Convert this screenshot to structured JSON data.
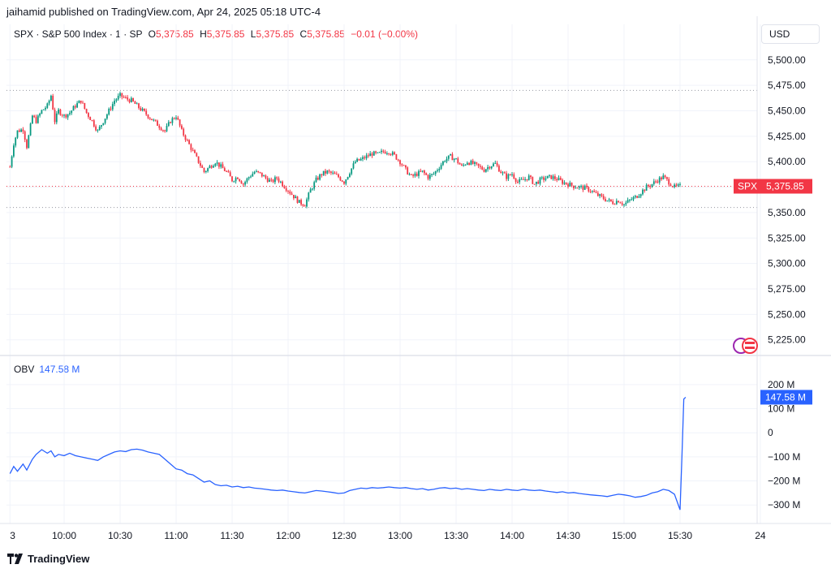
{
  "header": {
    "published": "jaihamid published on TradingView.com, Apr 24, 2025 05:18 UTC-4"
  },
  "legend": {
    "symbol_info": "SPX · S&P 500 Index · 1 · SP",
    "o_label": "O",
    "o_value": "5,375.85",
    "h_label": "H",
    "h_value": "5,375.85",
    "l_label": "L",
    "l_value": "5,375.85",
    "c_label": "C",
    "c_value": "5,375.85",
    "change": "−0.01 (−0.00%)"
  },
  "currency": "USD",
  "obv_legend": {
    "name": "OBV",
    "value": "147.58 M"
  },
  "brand": {
    "name": "TradingView"
  },
  "colors": {
    "up": "#089981",
    "down": "#f23645",
    "obv": "#2962ff",
    "grid": "#f0f3fa"
  },
  "chart_data": [
    {
      "type": "candlestick",
      "title": "SPX · S&P 500 Index · 1 · SP",
      "ylim": [
        5212,
        5515
      ],
      "yticks": [
        "5,500.00",
        "5,475.00",
        "5,450.00",
        "5,425.00",
        "5,400.00",
        "5,375.00",
        "5,350.00",
        "5,325.00",
        "5,300.00",
        "5,275.00",
        "5,250.00",
        "5,225.00"
      ],
      "ytick_values": [
        5500,
        5475,
        5450,
        5425,
        5400,
        5375,
        5350,
        5325,
        5300,
        5275,
        5250,
        5225
      ],
      "xticks": [
        "3",
        "10:00",
        "10:30",
        "11:00",
        "11:30",
        "12:00",
        "12:30",
        "13:00",
        "13:30",
        "14:00",
        "14:30",
        "15:00",
        "15:30",
        "24"
      ],
      "xtick_minutes": [
        -29,
        0,
        30,
        60,
        90,
        120,
        150,
        180,
        210,
        240,
        270,
        300,
        330,
        373
      ],
      "close_path": [
        [
          -29,
          5395
        ],
        [
          -27,
          5418
        ],
        [
          -25,
          5430
        ],
        [
          -22,
          5432
        ],
        [
          -20,
          5415
        ],
        [
          -17,
          5445
        ],
        [
          -15,
          5440
        ],
        [
          -12,
          5450
        ],
        [
          -9,
          5455
        ],
        [
          -7,
          5465
        ],
        [
          -5,
          5440
        ],
        [
          -3,
          5450
        ],
        [
          0,
          5445
        ],
        [
          3,
          5448
        ],
        [
          6,
          5455
        ],
        [
          9,
          5460
        ],
        [
          12,
          5448
        ],
        [
          15,
          5440
        ],
        [
          18,
          5430
        ],
        [
          21,
          5440
        ],
        [
          24,
          5450
        ],
        [
          27,
          5460
        ],
        [
          30,
          5465
        ],
        [
          33,
          5462
        ],
        [
          36,
          5460
        ],
        [
          39,
          5455
        ],
        [
          42,
          5450
        ],
        [
          45,
          5445
        ],
        [
          48,
          5440
        ],
        [
          51,
          5435
        ],
        [
          54,
          5430
        ],
        [
          57,
          5440
        ],
        [
          60,
          5445
        ],
        [
          63,
          5430
        ],
        [
          66,
          5420
        ],
        [
          69,
          5410
        ],
        [
          72,
          5400
        ],
        [
          75,
          5390
        ],
        [
          78,
          5395
        ],
        [
          81,
          5400
        ],
        [
          84,
          5395
        ],
        [
          87,
          5390
        ],
        [
          90,
          5382
        ],
        [
          93,
          5385
        ],
        [
          96,
          5378
        ],
        [
          99,
          5385
        ],
        [
          102,
          5390
        ],
        [
          105,
          5388
        ],
        [
          108,
          5384
        ],
        [
          111,
          5380
        ],
        [
          114,
          5384
        ],
        [
          117,
          5378
        ],
        [
          120,
          5372
        ],
        [
          123,
          5366
        ],
        [
          126,
          5360
        ],
        [
          129,
          5358
        ],
        [
          132,
          5372
        ],
        [
          135,
          5382
        ],
        [
          138,
          5388
        ],
        [
          141,
          5390
        ],
        [
          144,
          5388
        ],
        [
          147,
          5385
        ],
        [
          150,
          5380
        ],
        [
          153,
          5390
        ],
        [
          156,
          5400
        ],
        [
          159,
          5402
        ],
        [
          162,
          5405
        ],
        [
          165,
          5408
        ],
        [
          168,
          5407
        ],
        [
          171,
          5410
        ],
        [
          174,
          5410
        ],
        [
          177,
          5406
        ],
        [
          180,
          5400
        ],
        [
          183,
          5392
        ],
        [
          186,
          5385
        ],
        [
          189,
          5388
        ],
        [
          192,
          5390
        ],
        [
          195,
          5385
        ],
        [
          198,
          5388
        ],
        [
          201,
          5395
        ],
        [
          204,
          5402
        ],
        [
          207,
          5405
        ],
        [
          210,
          5402
        ],
        [
          213,
          5395
        ],
        [
          216,
          5400
        ],
        [
          219,
          5398
        ],
        [
          222,
          5395
        ],
        [
          225,
          5392
        ],
        [
          228,
          5396
        ],
        [
          231,
          5398
        ],
        [
          234,
          5390
        ],
        [
          237,
          5385
        ],
        [
          240,
          5388
        ],
        [
          243,
          5380
        ],
        [
          246,
          5382
        ],
        [
          249,
          5385
        ],
        [
          252,
          5378
        ],
        [
          255,
          5382
        ],
        [
          258,
          5384
        ],
        [
          261,
          5385
        ],
        [
          264,
          5383
        ],
        [
          267,
          5380
        ],
        [
          270,
          5378
        ],
        [
          273,
          5376
        ],
        [
          276,
          5375
        ],
        [
          279,
          5374
        ],
        [
          282,
          5372
        ],
        [
          285,
          5368
        ],
        [
          288,
          5365
        ],
        [
          291,
          5362
        ],
        [
          294,
          5360
        ],
        [
          297,
          5362
        ],
        [
          300,
          5358
        ],
        [
          303,
          5362
        ],
        [
          306,
          5365
        ],
        [
          309,
          5370
        ],
        [
          312,
          5375
        ],
        [
          315,
          5378
        ],
        [
          318,
          5382
        ],
        [
          321,
          5385
        ],
        [
          324,
          5380
        ],
        [
          327,
          5375
        ],
        [
          330,
          5375.85
        ]
      ],
      "last_price_label": "5,375.85",
      "last_price_tag": "SPX",
      "last_price": 5375.85,
      "dotted_levels": [
        5470,
        5375.85,
        5355
      ]
    },
    {
      "type": "line",
      "title": "OBV",
      "ylim": [
        -360,
        230
      ],
      "yticks": [
        "200 M",
        "100 M",
        "0",
        "−100 M",
        "−200 M",
        "−300 M"
      ],
      "ytick_values": [
        200,
        100,
        0,
        -100,
        -200,
        -300
      ],
      "last_value_label": "147.58 M",
      "x": [
        -29,
        -27,
        -25,
        -22,
        -20,
        -17,
        -15,
        -12,
        -9,
        -7,
        -5,
        -3,
        0,
        3,
        6,
        9,
        12,
        15,
        18,
        21,
        24,
        27,
        30,
        33,
        36,
        39,
        42,
        45,
        48,
        51,
        54,
        57,
        60,
        63,
        66,
        69,
        72,
        75,
        78,
        81,
        84,
        87,
        90,
        93,
        96,
        99,
        102,
        105,
        108,
        111,
        114,
        117,
        120,
        123,
        126,
        129,
        132,
        135,
        138,
        141,
        144,
        147,
        150,
        153,
        156,
        159,
        162,
        165,
        168,
        171,
        174,
        177,
        180,
        183,
        186,
        189,
        192,
        195,
        198,
        201,
        204,
        207,
        210,
        213,
        216,
        219,
        222,
        225,
        228,
        231,
        234,
        237,
        240,
        243,
        246,
        249,
        252,
        255,
        258,
        261,
        264,
        267,
        270,
        273,
        276,
        279,
        282,
        285,
        288,
        291,
        294,
        297,
        300,
        303,
        306,
        309,
        312,
        315,
        318,
        321,
        324,
        327,
        330,
        331,
        332,
        333
      ],
      "values": [
        -170,
        -140,
        -160,
        -130,
        -155,
        -110,
        -90,
        -70,
        -85,
        -75,
        -100,
        -90,
        -95,
        -85,
        -95,
        -100,
        -105,
        -110,
        -115,
        -100,
        -90,
        -80,
        -75,
        -78,
        -70,
        -68,
        -72,
        -80,
        -85,
        -90,
        -110,
        -130,
        -150,
        -155,
        -170,
        -175,
        -190,
        -205,
        -200,
        -215,
        -220,
        -218,
        -225,
        -222,
        -228,
        -225,
        -230,
        -232,
        -235,
        -238,
        -240,
        -238,
        -242,
        -245,
        -248,
        -250,
        -245,
        -240,
        -242,
        -245,
        -248,
        -252,
        -250,
        -240,
        -235,
        -230,
        -232,
        -228,
        -230,
        -228,
        -225,
        -228,
        -230,
        -228,
        -232,
        -235,
        -232,
        -238,
        -235,
        -230,
        -228,
        -232,
        -230,
        -235,
        -232,
        -235,
        -238,
        -240,
        -235,
        -238,
        -240,
        -235,
        -238,
        -240,
        -235,
        -238,
        -240,
        -238,
        -242,
        -245,
        -248,
        -245,
        -250,
        -248,
        -252,
        -255,
        -258,
        -260,
        -262,
        -265,
        -260,
        -255,
        -258,
        -262,
        -268,
        -265,
        -260,
        -250,
        -245,
        -235,
        -240,
        -255,
        -320,
        -100,
        140,
        147.58
      ]
    }
  ]
}
